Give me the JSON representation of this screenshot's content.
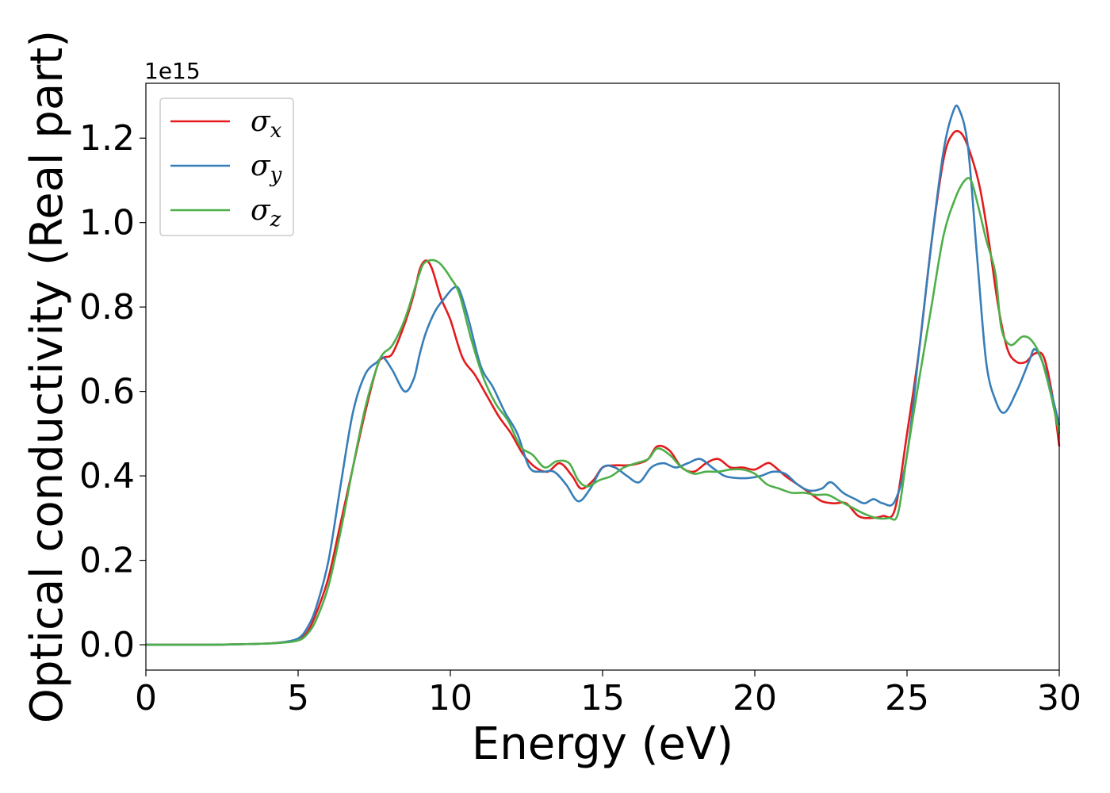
{
  "chart_data": {
    "type": "line",
    "xlabel": "Energy (eV)",
    "ylabel": "Optical conductivity (Real part)",
    "y_offset_label": "1e15",
    "xlim": [
      0,
      30
    ],
    "ylim": [
      -0.06,
      1.33
    ],
    "x_ticks": [
      0,
      5,
      10,
      15,
      20,
      25,
      30
    ],
    "x_tick_labels": [
      "0",
      "5",
      "10",
      "15",
      "20",
      "25",
      "30"
    ],
    "y_ticks": [
      0.0,
      0.2,
      0.4,
      0.6,
      0.8,
      1.0,
      1.2
    ],
    "y_tick_labels": [
      "0.0",
      "0.2",
      "0.4",
      "0.6",
      "0.8",
      "1.0",
      "1.2"
    ],
    "grid": false,
    "legend_position": "top-left",
    "series": [
      {
        "name": "σx",
        "symbol": "σ",
        "subscript": "x",
        "color": "#e41a1c",
        "x": [
          0,
          2,
          3,
          4,
          4.5,
          5,
          5.3,
          5.6,
          6,
          6.4,
          6.8,
          7.2,
          7.6,
          7.8,
          8.1,
          8.5,
          8.8,
          9.0,
          9.2,
          9.4,
          9.7,
          10.0,
          10.4,
          10.8,
          11.2,
          11.6,
          12.0,
          12.4,
          12.8,
          13.2,
          13.6,
          14.0,
          14.3,
          14.7,
          15.0,
          15.4,
          15.8,
          16.2,
          16.5,
          16.8,
          17.2,
          17.6,
          18.0,
          18.4,
          18.8,
          19.2,
          19.6,
          20.0,
          20.4,
          20.6,
          21.0,
          21.4,
          21.8,
          22.2,
          22.6,
          23.0,
          23.4,
          23.8,
          24.2,
          24.6,
          25.0,
          25.4,
          25.8,
          26.2,
          26.5,
          26.8,
          27.1,
          27.4,
          27.7,
          28.0,
          28.3,
          28.6,
          28.9,
          29.2,
          29.5,
          29.8,
          30.0
        ],
        "y": [
          0,
          0,
          0.001,
          0.003,
          0.006,
          0.012,
          0.03,
          0.075,
          0.16,
          0.29,
          0.42,
          0.55,
          0.66,
          0.68,
          0.69,
          0.76,
          0.83,
          0.89,
          0.91,
          0.89,
          0.82,
          0.77,
          0.68,
          0.64,
          0.59,
          0.54,
          0.5,
          0.45,
          0.42,
          0.41,
          0.43,
          0.4,
          0.37,
          0.39,
          0.42,
          0.425,
          0.425,
          0.43,
          0.44,
          0.47,
          0.46,
          0.42,
          0.41,
          0.43,
          0.44,
          0.42,
          0.42,
          0.415,
          0.43,
          0.425,
          0.4,
          0.38,
          0.36,
          0.34,
          0.335,
          0.335,
          0.305,
          0.3,
          0.305,
          0.32,
          0.5,
          0.7,
          0.95,
          1.15,
          1.21,
          1.21,
          1.16,
          1.08,
          0.95,
          0.8,
          0.7,
          0.67,
          0.67,
          0.69,
          0.68,
          0.58,
          0.47
        ]
      },
      {
        "name": "σy",
        "symbol": "σ",
        "subscript": "y",
        "color": "#377eb8",
        "x": [
          0,
          2,
          3,
          4,
          4.5,
          5,
          5.3,
          5.6,
          6,
          6.4,
          6.8,
          7.2,
          7.6,
          7.8,
          8.1,
          8.5,
          8.8,
          9.0,
          9.2,
          9.5,
          9.8,
          10.1,
          10.3,
          10.6,
          11.0,
          11.4,
          11.8,
          12.2,
          12.6,
          13.0,
          13.4,
          13.8,
          14.2,
          14.6,
          15.0,
          15.4,
          15.8,
          16.2,
          16.6,
          17.0,
          17.4,
          17.8,
          18.2,
          18.6,
          19.0,
          19.4,
          19.8,
          20.2,
          20.6,
          21.0,
          21.4,
          21.8,
          22.2,
          22.5,
          22.9,
          23.3,
          23.6,
          23.9,
          24.2,
          24.6,
          25.0,
          25.4,
          25.8,
          26.2,
          26.5,
          26.7,
          27.0,
          27.3,
          27.6,
          27.9,
          28.2,
          28.6,
          29.0,
          29.2,
          29.5,
          29.8,
          30.0
        ],
        "y": [
          0,
          0,
          0.001,
          0.003,
          0.006,
          0.015,
          0.04,
          0.09,
          0.2,
          0.38,
          0.55,
          0.64,
          0.67,
          0.68,
          0.65,
          0.6,
          0.63,
          0.69,
          0.74,
          0.79,
          0.82,
          0.845,
          0.84,
          0.77,
          0.66,
          0.61,
          0.55,
          0.5,
          0.42,
          0.41,
          0.41,
          0.38,
          0.34,
          0.37,
          0.42,
          0.42,
          0.4,
          0.385,
          0.42,
          0.43,
          0.42,
          0.43,
          0.44,
          0.42,
          0.4,
          0.395,
          0.395,
          0.4,
          0.41,
          0.405,
          0.38,
          0.365,
          0.37,
          0.385,
          0.36,
          0.345,
          0.335,
          0.345,
          0.335,
          0.34,
          0.45,
          0.7,
          0.95,
          1.17,
          1.26,
          1.27,
          1.18,
          0.92,
          0.67,
          0.58,
          0.55,
          0.6,
          0.67,
          0.7,
          0.66,
          0.58,
          0.52
        ]
      },
      {
        "name": "σz",
        "symbol": "σ",
        "subscript": "z",
        "color": "#4daf4a",
        "x": [
          0,
          2,
          3,
          4,
          4.5,
          5,
          5.3,
          5.6,
          6,
          6.4,
          6.8,
          7.2,
          7.6,
          7.8,
          8.1,
          8.5,
          8.9,
          9.1,
          9.3,
          9.5,
          9.7,
          10.0,
          10.3,
          10.7,
          11.1,
          11.5,
          11.9,
          12.3,
          12.7,
          13.1,
          13.5,
          13.9,
          14.2,
          14.5,
          14.9,
          15.3,
          15.7,
          16.1,
          16.5,
          16.8,
          17.2,
          17.6,
          18.0,
          18.4,
          18.8,
          19.2,
          19.6,
          20.0,
          20.4,
          20.8,
          21.2,
          21.6,
          22.0,
          22.4,
          22.8,
          23.2,
          23.6,
          24.0,
          24.4,
          24.7,
          25.0,
          25.4,
          25.8,
          26.2,
          26.6,
          26.9,
          27.1,
          27.3,
          27.6,
          27.9,
          28.1,
          28.4,
          28.8,
          29.1,
          29.4,
          29.7,
          30.0
        ],
        "y": [
          0,
          0,
          0.001,
          0.003,
          0.005,
          0.01,
          0.025,
          0.06,
          0.14,
          0.27,
          0.42,
          0.56,
          0.66,
          0.69,
          0.71,
          0.77,
          0.86,
          0.9,
          0.91,
          0.91,
          0.9,
          0.87,
          0.83,
          0.72,
          0.63,
          0.57,
          0.53,
          0.47,
          0.45,
          0.42,
          0.435,
          0.43,
          0.39,
          0.375,
          0.39,
          0.4,
          0.42,
          0.43,
          0.44,
          0.465,
          0.45,
          0.42,
          0.405,
          0.41,
          0.41,
          0.415,
          0.415,
          0.405,
          0.38,
          0.37,
          0.36,
          0.36,
          0.355,
          0.355,
          0.34,
          0.325,
          0.31,
          0.3,
          0.3,
          0.31,
          0.45,
          0.63,
          0.8,
          0.97,
          1.06,
          1.1,
          1.1,
          1.05,
          0.96,
          0.88,
          0.75,
          0.71,
          0.73,
          0.72,
          0.68,
          0.6,
          0.5
        ]
      }
    ]
  }
}
